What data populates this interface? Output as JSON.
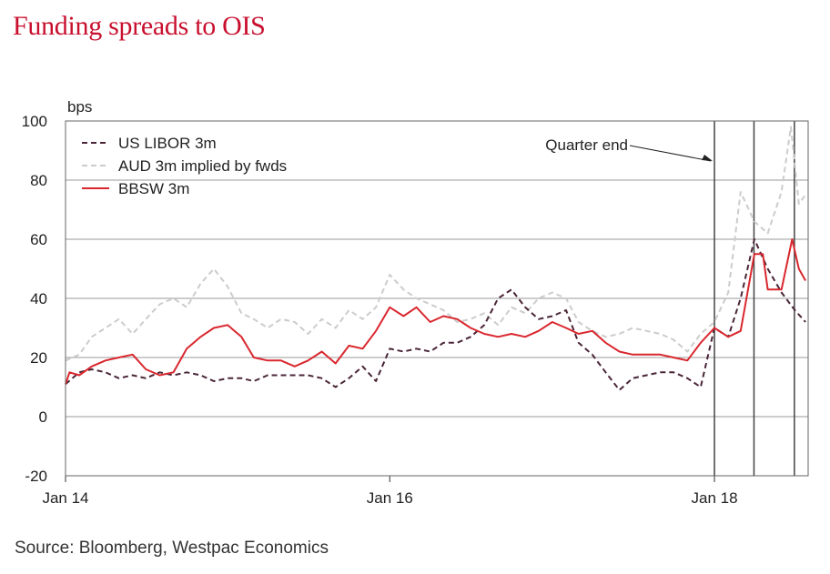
{
  "title": "Funding spreads to OIS",
  "source": "Source: Bloomberg, Westpac Economics",
  "chart_data": {
    "type": "line",
    "ylabel": "bps",
    "ylim": [
      -20,
      100
    ],
    "yticks": [
      "100",
      "80",
      "60",
      "40",
      "20",
      "0",
      "-20"
    ],
    "xlim": [
      "2014-01-01",
      "2018-07-31"
    ],
    "xticks": [
      {
        "label": "Jan 14",
        "date": "2014-01-01"
      },
      {
        "label": "Jan 16",
        "date": "2016-01-01"
      },
      {
        "label": "Jan 18",
        "date": "2018-01-01"
      }
    ],
    "grid": true,
    "legend_position": "top-left",
    "annotation": {
      "text": "Quarter end"
    },
    "quarter_end_lines": [
      "2018-01-01",
      "2018-03-31",
      "2018-06-30"
    ],
    "series": [
      {
        "name": "US LIBOR 3m",
        "style": "dashed",
        "color": "#4a2538",
        "points": [
          [
            "2014-01-01",
            11
          ],
          [
            "2014-02-01",
            15
          ],
          [
            "2014-03-01",
            16
          ],
          [
            "2014-04-01",
            15
          ],
          [
            "2014-05-01",
            13
          ],
          [
            "2014-06-01",
            14
          ],
          [
            "2014-07-01",
            13
          ],
          [
            "2014-08-01",
            15
          ],
          [
            "2014-09-01",
            14
          ],
          [
            "2014-10-01",
            15
          ],
          [
            "2014-11-01",
            14
          ],
          [
            "2014-12-01",
            12
          ],
          [
            "2015-01-01",
            13
          ],
          [
            "2015-02-01",
            13
          ],
          [
            "2015-03-01",
            12
          ],
          [
            "2015-04-01",
            14
          ],
          [
            "2015-05-01",
            14
          ],
          [
            "2015-06-01",
            14
          ],
          [
            "2015-07-01",
            14
          ],
          [
            "2015-08-01",
            13
          ],
          [
            "2015-09-01",
            10
          ],
          [
            "2015-10-01",
            13
          ],
          [
            "2015-11-01",
            17
          ],
          [
            "2015-12-01",
            12
          ],
          [
            "2016-01-01",
            23
          ],
          [
            "2016-02-01",
            22
          ],
          [
            "2016-03-01",
            23
          ],
          [
            "2016-04-01",
            22
          ],
          [
            "2016-05-01",
            25
          ],
          [
            "2016-06-01",
            25
          ],
          [
            "2016-07-01",
            27
          ],
          [
            "2016-08-01",
            31
          ],
          [
            "2016-09-01",
            40
          ],
          [
            "2016-10-01",
            43
          ],
          [
            "2016-11-01",
            37
          ],
          [
            "2016-12-01",
            33
          ],
          [
            "2017-01-01",
            34
          ],
          [
            "2017-02-01",
            36
          ],
          [
            "2017-03-01",
            25
          ],
          [
            "2017-04-01",
            21
          ],
          [
            "2017-05-01",
            15
          ],
          [
            "2017-06-01",
            9
          ],
          [
            "2017-07-01",
            13
          ],
          [
            "2017-08-01",
            14
          ],
          [
            "2017-09-01",
            15
          ],
          [
            "2017-10-01",
            15
          ],
          [
            "2017-11-01",
            13
          ],
          [
            "2017-12-01",
            10
          ],
          [
            "2018-01-01",
            30
          ],
          [
            "2018-02-01",
            27
          ],
          [
            "2018-03-01",
            40
          ],
          [
            "2018-04-01",
            60
          ],
          [
            "2018-05-01",
            50
          ],
          [
            "2018-06-01",
            42
          ],
          [
            "2018-07-01",
            36
          ],
          [
            "2018-07-25",
            32
          ]
        ]
      },
      {
        "name": "AUD 3m implied by fwds",
        "style": "dashed",
        "color": "#cccccc",
        "points": [
          [
            "2014-01-01",
            19
          ],
          [
            "2014-02-01",
            21
          ],
          [
            "2014-03-01",
            27
          ],
          [
            "2014-04-01",
            30
          ],
          [
            "2014-05-01",
            33
          ],
          [
            "2014-06-01",
            28
          ],
          [
            "2014-07-01",
            33
          ],
          [
            "2014-08-01",
            38
          ],
          [
            "2014-09-01",
            40
          ],
          [
            "2014-10-01",
            37
          ],
          [
            "2014-11-01",
            45
          ],
          [
            "2014-12-01",
            50
          ],
          [
            "2015-01-01",
            44
          ],
          [
            "2015-02-01",
            35
          ],
          [
            "2015-03-01",
            33
          ],
          [
            "2015-04-01",
            30
          ],
          [
            "2015-05-01",
            33
          ],
          [
            "2015-06-01",
            32
          ],
          [
            "2015-07-01",
            28
          ],
          [
            "2015-08-01",
            33
          ],
          [
            "2015-09-01",
            30
          ],
          [
            "2015-10-01",
            36
          ],
          [
            "2015-11-01",
            33
          ],
          [
            "2015-12-01",
            37
          ],
          [
            "2016-01-01",
            48
          ],
          [
            "2016-02-01",
            43
          ],
          [
            "2016-03-01",
            40
          ],
          [
            "2016-04-01",
            38
          ],
          [
            "2016-05-01",
            36
          ],
          [
            "2016-06-01",
            32
          ],
          [
            "2016-07-01",
            33
          ],
          [
            "2016-08-01",
            35
          ],
          [
            "2016-09-01",
            31
          ],
          [
            "2016-10-01",
            37
          ],
          [
            "2016-11-01",
            35
          ],
          [
            "2016-12-01",
            40
          ],
          [
            "2017-01-01",
            42
          ],
          [
            "2017-02-01",
            40
          ],
          [
            "2017-03-01",
            32
          ],
          [
            "2017-04-01",
            29
          ],
          [
            "2017-05-01",
            27
          ],
          [
            "2017-06-01",
            28
          ],
          [
            "2017-07-01",
            30
          ],
          [
            "2017-08-01",
            29
          ],
          [
            "2017-09-01",
            28
          ],
          [
            "2017-10-01",
            26
          ],
          [
            "2017-11-01",
            22
          ],
          [
            "2017-12-01",
            28
          ],
          [
            "2018-01-01",
            32
          ],
          [
            "2018-02-01",
            42
          ],
          [
            "2018-03-01",
            76
          ],
          [
            "2018-04-01",
            66
          ],
          [
            "2018-05-01",
            62
          ],
          [
            "2018-06-01",
            76
          ],
          [
            "2018-06-22",
            98
          ],
          [
            "2018-07-10",
            72
          ],
          [
            "2018-07-25",
            75
          ]
        ]
      },
      {
        "name": "BBSW 3m",
        "style": "solid",
        "color": "#d9272e",
        "points": [
          [
            "2014-01-01",
            11
          ],
          [
            "2014-01-10",
            15
          ],
          [
            "2014-02-01",
            14
          ],
          [
            "2014-03-01",
            17
          ],
          [
            "2014-04-01",
            19
          ],
          [
            "2014-05-01",
            20
          ],
          [
            "2014-06-01",
            21
          ],
          [
            "2014-07-01",
            16
          ],
          [
            "2014-08-01",
            14
          ],
          [
            "2014-09-01",
            15
          ],
          [
            "2014-10-01",
            23
          ],
          [
            "2014-11-01",
            27
          ],
          [
            "2014-12-01",
            30
          ],
          [
            "2015-01-01",
            31
          ],
          [
            "2015-02-01",
            27
          ],
          [
            "2015-03-01",
            20
          ],
          [
            "2015-04-01",
            19
          ],
          [
            "2015-05-01",
            19
          ],
          [
            "2015-06-01",
            17
          ],
          [
            "2015-07-01",
            19
          ],
          [
            "2015-08-01",
            22
          ],
          [
            "2015-09-01",
            18
          ],
          [
            "2015-10-01",
            24
          ],
          [
            "2015-11-01",
            23
          ],
          [
            "2015-12-01",
            29
          ],
          [
            "2016-01-01",
            37
          ],
          [
            "2016-02-01",
            34
          ],
          [
            "2016-03-01",
            37
          ],
          [
            "2016-04-01",
            32
          ],
          [
            "2016-05-01",
            34
          ],
          [
            "2016-06-01",
            33
          ],
          [
            "2016-07-01",
            30
          ],
          [
            "2016-08-01",
            28
          ],
          [
            "2016-09-01",
            27
          ],
          [
            "2016-10-01",
            28
          ],
          [
            "2016-11-01",
            27
          ],
          [
            "2016-12-01",
            29
          ],
          [
            "2017-01-01",
            32
          ],
          [
            "2017-02-01",
            30
          ],
          [
            "2017-03-01",
            28
          ],
          [
            "2017-04-01",
            29
          ],
          [
            "2017-05-01",
            25
          ],
          [
            "2017-06-01",
            22
          ],
          [
            "2017-07-01",
            21
          ],
          [
            "2017-08-01",
            21
          ],
          [
            "2017-09-01",
            21
          ],
          [
            "2017-10-01",
            20
          ],
          [
            "2017-11-01",
            19
          ],
          [
            "2017-12-01",
            25
          ],
          [
            "2018-01-01",
            30
          ],
          [
            "2018-02-01",
            27
          ],
          [
            "2018-03-01",
            29
          ],
          [
            "2018-04-01",
            55
          ],
          [
            "2018-04-20",
            55
          ],
          [
            "2018-05-01",
            43
          ],
          [
            "2018-06-01",
            43
          ],
          [
            "2018-06-25",
            60
          ],
          [
            "2018-07-10",
            50
          ],
          [
            "2018-07-25",
            46
          ]
        ]
      }
    ]
  }
}
